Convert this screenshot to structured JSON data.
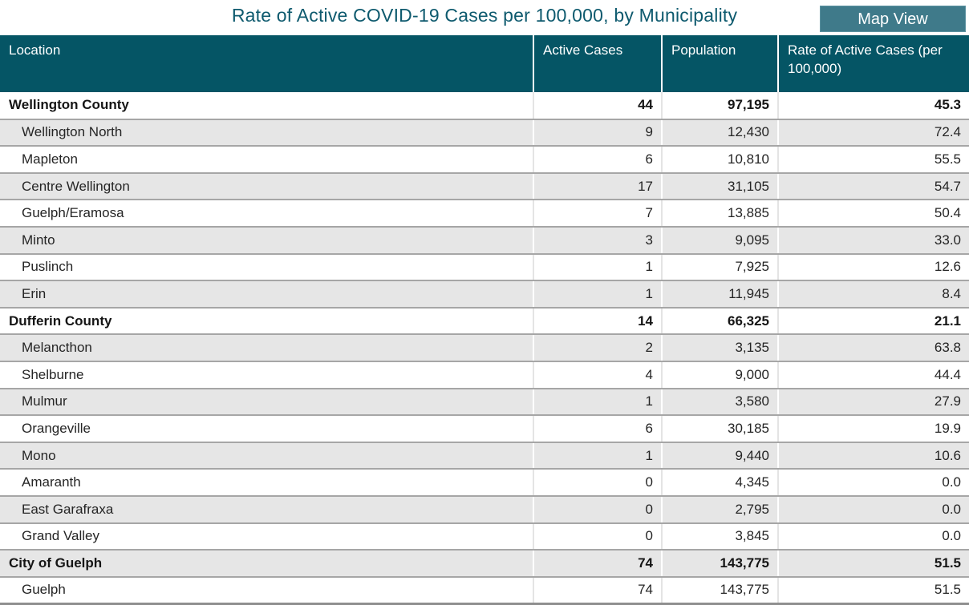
{
  "page": {
    "title": "Rate of Active COVID-19 Cases per 100,000, by Municipality",
    "map_view_button": "Map View"
  },
  "colors": {
    "header_background": "#055565",
    "title_text": "#0E5A6E",
    "button_background": "#3F7A8A",
    "row_stripe": "#E6E6E6",
    "row_border": "#A6A6A6"
  },
  "chart_data": {
    "type": "table",
    "title": "Rate of Active COVID-19 Cases per 100,000, by Municipality",
    "columns": [
      "Location",
      "Active Cases",
      "Population",
      "Rate of Active Cases (per 100,000)"
    ],
    "rows": [
      {
        "location": "Wellington County",
        "active_cases": "44",
        "population": "97,195",
        "rate": "45.3",
        "summary": true
      },
      {
        "location": "Wellington North",
        "active_cases": "9",
        "population": "12,430",
        "rate": "72.4",
        "summary": false
      },
      {
        "location": "Mapleton",
        "active_cases": "6",
        "population": "10,810",
        "rate": "55.5",
        "summary": false
      },
      {
        "location": "Centre Wellington",
        "active_cases": "17",
        "population": "31,105",
        "rate": "54.7",
        "summary": false
      },
      {
        "location": "Guelph/Eramosa",
        "active_cases": "7",
        "population": "13,885",
        "rate": "50.4",
        "summary": false
      },
      {
        "location": "Minto",
        "active_cases": "3",
        "population": "9,095",
        "rate": "33.0",
        "summary": false
      },
      {
        "location": "Puslinch",
        "active_cases": "1",
        "population": "7,925",
        "rate": "12.6",
        "summary": false
      },
      {
        "location": "Erin",
        "active_cases": "1",
        "population": "11,945",
        "rate": "8.4",
        "summary": false
      },
      {
        "location": "Dufferin County",
        "active_cases": "14",
        "population": "66,325",
        "rate": "21.1",
        "summary": true
      },
      {
        "location": "Melancthon",
        "active_cases": "2",
        "population": "3,135",
        "rate": "63.8",
        "summary": false
      },
      {
        "location": "Shelburne",
        "active_cases": "4",
        "population": "9,000",
        "rate": "44.4",
        "summary": false
      },
      {
        "location": "Mulmur",
        "active_cases": "1",
        "population": "3,580",
        "rate": "27.9",
        "summary": false
      },
      {
        "location": "Orangeville",
        "active_cases": "6",
        "population": "30,185",
        "rate": "19.9",
        "summary": false
      },
      {
        "location": "Mono",
        "active_cases": "1",
        "population": "9,440",
        "rate": "10.6",
        "summary": false
      },
      {
        "location": "Amaranth",
        "active_cases": "0",
        "population": "4,345",
        "rate": "0.0",
        "summary": false
      },
      {
        "location": "East Garafraxa",
        "active_cases": "0",
        "population": "2,795",
        "rate": "0.0",
        "summary": false
      },
      {
        "location": "Grand Valley",
        "active_cases": "0",
        "population": "3,845",
        "rate": "0.0",
        "summary": false
      },
      {
        "location": "City of Guelph",
        "active_cases": "74",
        "population": "143,775",
        "rate": "51.5",
        "summary": true
      },
      {
        "location": "Guelph",
        "active_cases": "74",
        "population": "143,775",
        "rate": "51.5",
        "summary": false
      }
    ]
  }
}
